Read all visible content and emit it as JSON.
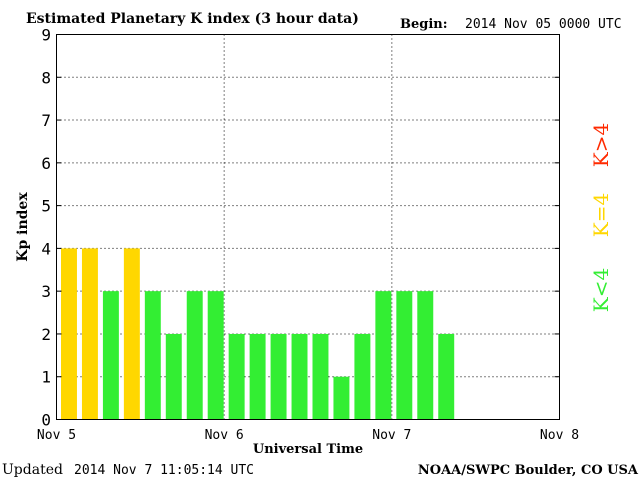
{
  "chart_data": {
    "type": "bar",
    "title": "Estimated Planetary K index (3 hour data)",
    "begin_label": "Begin:",
    "begin_value": "2014 Nov 05 0000 UTC",
    "xlabel": "Universal Time",
    "ylabel": "Kp index",
    "ylim": [
      0,
      9
    ],
    "y_ticks": [
      "0",
      "1",
      "2",
      "3",
      "4",
      "5",
      "6",
      "7",
      "8",
      "9"
    ],
    "x_ticks": [
      "Nov 5",
      "Nov 6",
      "Nov 7",
      "Nov 8"
    ],
    "bars_per_day": 8,
    "values": [
      4,
      4,
      3,
      4,
      3,
      2,
      3,
      3,
      2,
      2,
      2,
      2,
      2,
      1,
      2,
      3,
      3,
      3,
      2
    ],
    "grid": true,
    "legend": [
      {
        "label": "K>4",
        "color": "#ff2a00"
      },
      {
        "label": "K=4",
        "color": "#ffd700"
      },
      {
        "label": "K<4",
        "color": "#33ee33"
      }
    ],
    "colors": {
      "below": "#33ee33",
      "equal": "#ffd700",
      "above": "#ff2a00"
    }
  },
  "footer": {
    "updated_label": "Updated",
    "updated_value": "2014 Nov  7 11:05:14 UTC",
    "source": "NOAA/SWPC Boulder, CO USA"
  }
}
